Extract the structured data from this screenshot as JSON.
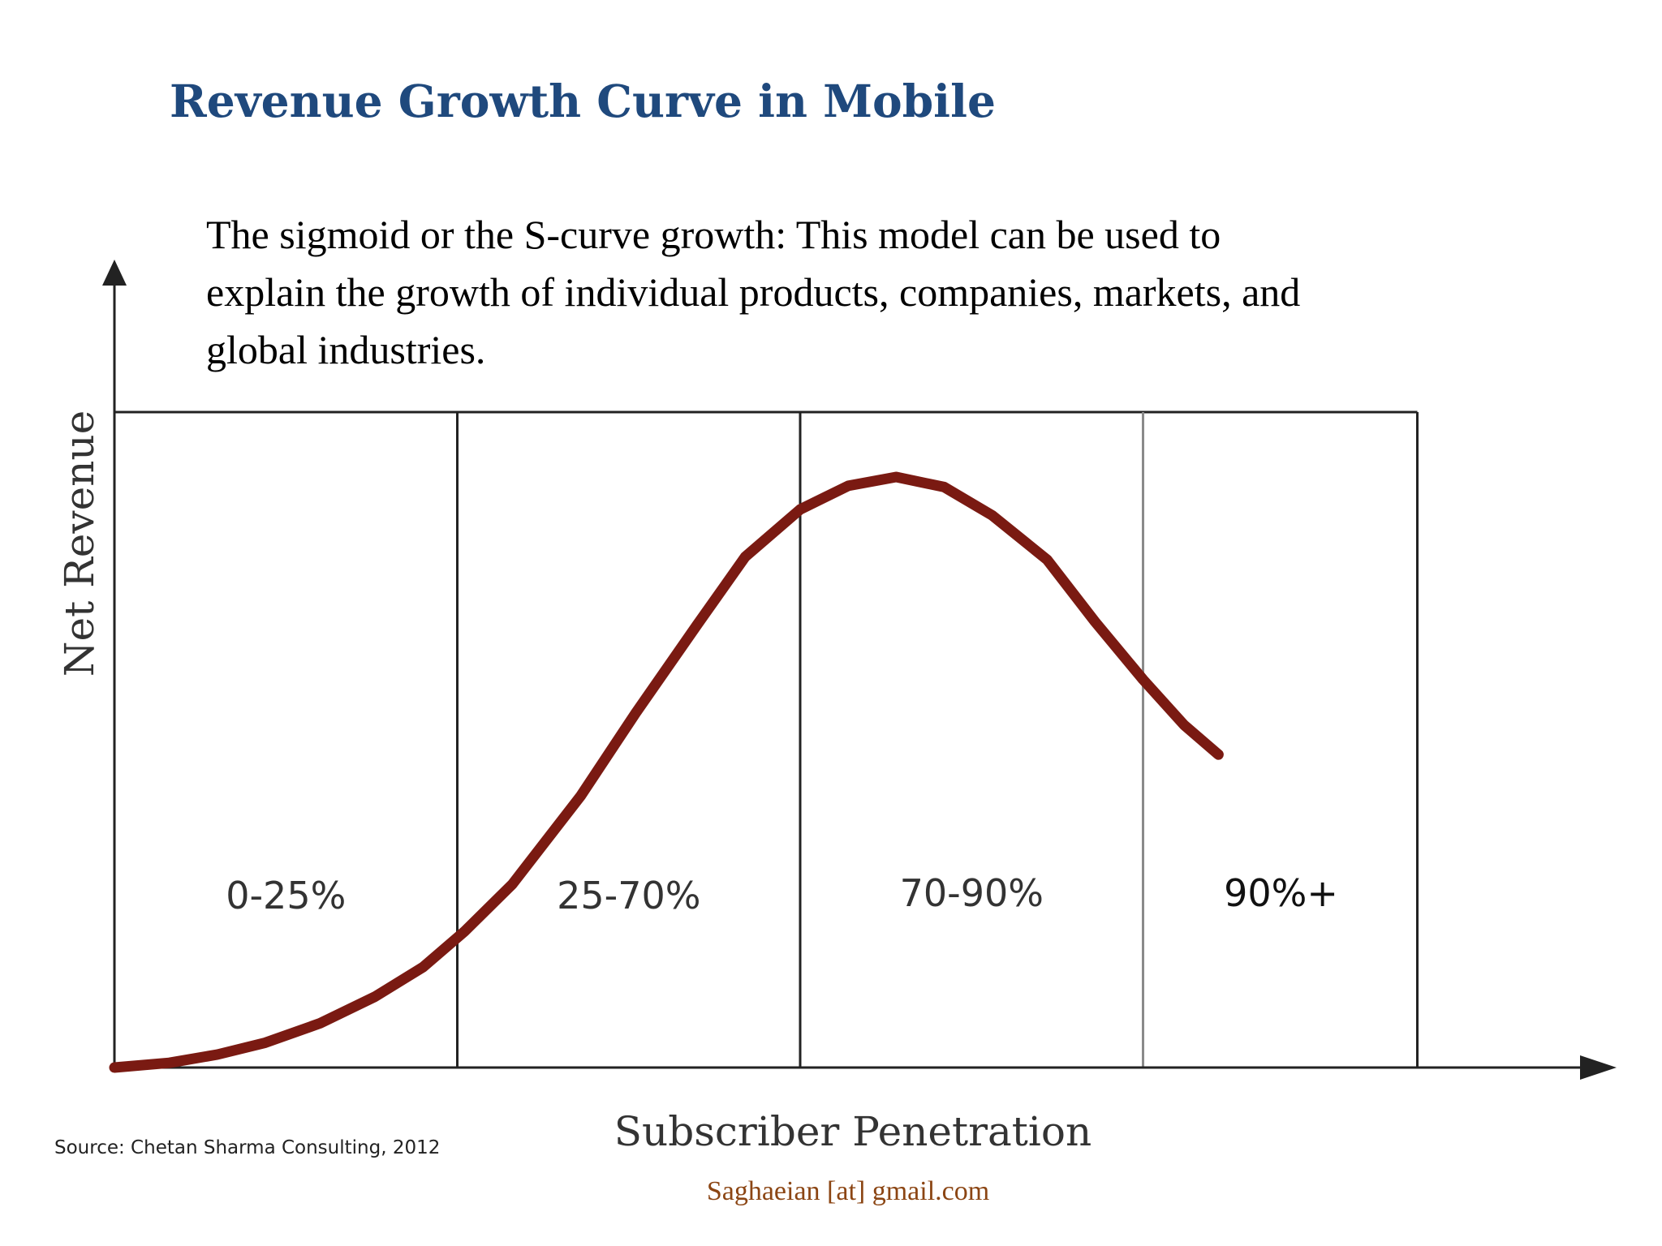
{
  "slide": {
    "title": "Revenue Growth Curve in Mobile",
    "description_lines": [
      "The sigmoid or the S-curve growth: This model can be used to",
      "explain the growth of individual products, companies, markets, and",
      "global industries."
    ],
    "source": "Source:  Chetan Sharma Consulting, 2012",
    "credit": "Saghaeian [at] gmail.com"
  },
  "chart_data": {
    "type": "line",
    "xlabel": "Subscriber Penetration",
    "ylabel": "Net Revenue",
    "xlim": [
      0,
      105
    ],
    "ylim": [
      0,
      100
    ],
    "grid": false,
    "legend": "none",
    "colors": {
      "curve": "#7a1a12",
      "axis": "#222222",
      "segment_lines": "#222222",
      "segment_line_90": "#8a8a8a"
    },
    "segments": [
      {
        "label": "0-25%",
        "from": 0,
        "to": 25
      },
      {
        "label": "25-70%",
        "from": 25,
        "to": 50
      },
      {
        "label": "70-90%",
        "from": 50,
        "to": 75
      },
      {
        "label": "90%+",
        "from": 75,
        "to": 95
      }
    ],
    "series": [
      {
        "x": [
          0,
          4,
          7.5,
          11,
          15,
          19,
          22.5,
          25.5,
          29,
          34,
          38,
          42.5,
          46,
          50,
          53.5,
          57,
          60.5,
          64,
          68,
          71.5,
          75,
          78,
          80.5
        ],
        "y": [
          0,
          0.8,
          2.2,
          4.2,
          7.5,
          12,
          17,
          23,
          31,
          46,
          60,
          75,
          86.5,
          94.5,
          98.5,
          100,
          98.3,
          93.5,
          86,
          75.5,
          65.7,
          58,
          53
        ]
      }
    ]
  }
}
